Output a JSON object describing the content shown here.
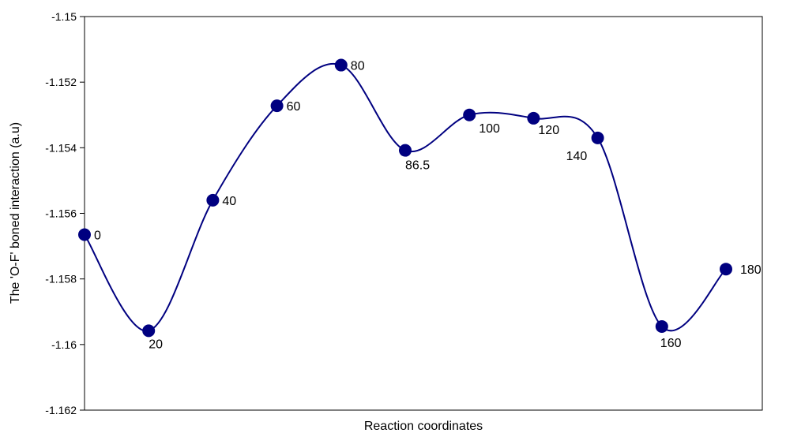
{
  "chart_data": {
    "type": "line",
    "title": "",
    "xlabel": "Reaction coordinates",
    "ylabel": "The 'O-F' boned interaction (a.u)",
    "ylim": [
      -1.162,
      -1.15
    ],
    "yticks": [
      "-1.15",
      "-1.152",
      "-1.154",
      "-1.156",
      "-1.158",
      "-1.16",
      "-1.162"
    ],
    "ytick_values": [
      -1.15,
      -1.152,
      -1.154,
      -1.156,
      -1.158,
      -1.16,
      -1.162
    ],
    "grid": false,
    "legend": "none",
    "line_color": "#000080",
    "marker_color": "#000080",
    "smooth": true,
    "series": [
      {
        "points": [
          {
            "label": "0",
            "y": -1.15665
          },
          {
            "label": "20",
            "y": -1.15958
          },
          {
            "label": "40",
            "y": -1.1556
          },
          {
            "label": "60",
            "y": -1.15272
          },
          {
            "label": "80",
            "y": -1.15148
          },
          {
            "label": "86.5",
            "y": -1.15408
          },
          {
            "label": "100",
            "y": -1.153
          },
          {
            "label": "120",
            "y": -1.1531
          },
          {
            "label": "140",
            "y": -1.1537
          },
          {
            "label": "160",
            "y": -1.15945
          },
          {
            "label": "180",
            "y": -1.1577
          }
        ]
      }
    ]
  }
}
